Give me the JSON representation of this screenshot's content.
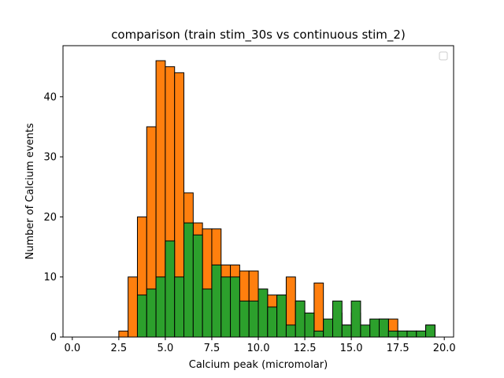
{
  "chart_data": {
    "type": "bar",
    "title": "comparison (train stim_30s vs continuous stim_2)",
    "xlabel": "Calcium peak (micromolar)",
    "ylabel": "Number of Calcium events",
    "xlim": [
      -0.5,
      20.5
    ],
    "ylim": [
      0,
      48.5
    ],
    "xticks": [
      0.0,
      2.5,
      5.0,
      7.5,
      10.0,
      12.5,
      15.0,
      17.5,
      20.0
    ],
    "xtick_labels": [
      "0.0",
      "2.5",
      "5.0",
      "7.5",
      "10.0",
      "12.5",
      "15.0",
      "17.5",
      "20.0"
    ],
    "yticks": [
      0,
      10,
      20,
      30,
      40
    ],
    "ytick_labels": [
      "0",
      "10",
      "20",
      "30",
      "40"
    ],
    "bin_edges": [
      0.5,
      1.0,
      1.5,
      2.0,
      2.5,
      3.0,
      3.5,
      4.0,
      4.5,
      5.0,
      5.5,
      6.0,
      6.5,
      7.0,
      7.5,
      8.0,
      8.5,
      9.0,
      9.5,
      10.0,
      10.5,
      11.0,
      11.5,
      12.0,
      12.5,
      13.0,
      13.5,
      14.0,
      14.5,
      15.0,
      15.5,
      16.0,
      16.5,
      17.0,
      17.5,
      18.0,
      18.5,
      19.0,
      19.5
    ],
    "series": [
      {
        "color": "#ff7f0e",
        "values": [
          0,
          0,
          0,
          0,
          1,
          10,
          20,
          35,
          46,
          45,
          44,
          24,
          19,
          18,
          18,
          12,
          12,
          11,
          11,
          8,
          7,
          7,
          10,
          6,
          4,
          9,
          1,
          4,
          2,
          4,
          0,
          2,
          3,
          3,
          1,
          1,
          1,
          2
        ]
      },
      {
        "color": "#2ca02c",
        "values": [
          0,
          0,
          0,
          0,
          0,
          0,
          7,
          8,
          10,
          16,
          10,
          19,
          17,
          8,
          12,
          10,
          10,
          6,
          6,
          8,
          5,
          7,
          2,
          6,
          4,
          1,
          3,
          6,
          2,
          6,
          2,
          3,
          3,
          1,
          1,
          1,
          1,
          2
        ]
      }
    ],
    "grid": false,
    "legend": {
      "location": "top-right",
      "entries": []
    }
  }
}
